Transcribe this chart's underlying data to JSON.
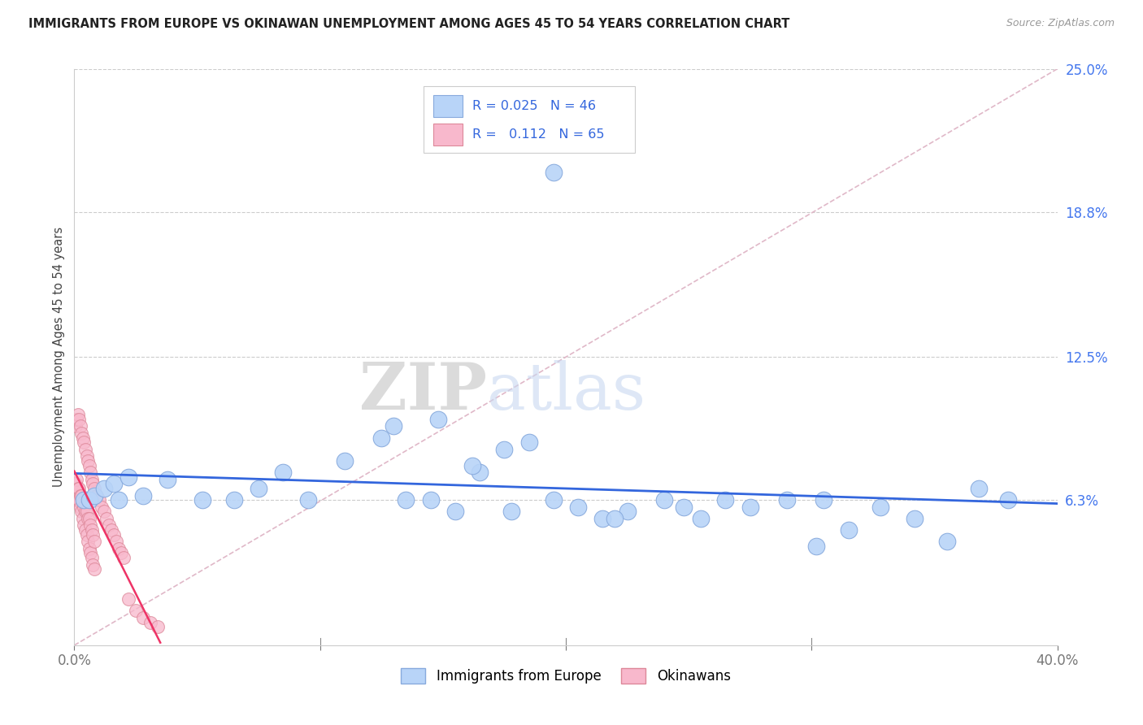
{
  "title": "IMMIGRANTS FROM EUROPE VS OKINAWAN UNEMPLOYMENT AMONG AGES 45 TO 54 YEARS CORRELATION CHART",
  "source": "Source: ZipAtlas.com",
  "ylabel": "Unemployment Among Ages 45 to 54 years",
  "xlim": [
    0.0,
    0.4
  ],
  "ylim": [
    0.0,
    0.25
  ],
  "xticks": [
    0.0,
    0.1,
    0.2,
    0.3,
    0.4
  ],
  "xticklabels": [
    "0.0%",
    "",
    "",
    "",
    "40.0%"
  ],
  "ytick_labels_right": [
    "25.0%",
    "18.8%",
    "12.5%",
    "6.3%"
  ],
  "ytick_vals_right": [
    0.25,
    0.188,
    0.125,
    0.063
  ],
  "blue_R": 0.025,
  "blue_N": 46,
  "pink_R": 0.112,
  "pink_N": 65,
  "watermark_zip": "ZIP",
  "watermark_atlas": "atlas",
  "legend_labels": [
    "Immigrants from Europe",
    "Okinawans"
  ],
  "blue_x": [
    0.004,
    0.006,
    0.008,
    0.012,
    0.016,
    0.018,
    0.022,
    0.028,
    0.038,
    0.052,
    0.065,
    0.075,
    0.085,
    0.095,
    0.11,
    0.125,
    0.135,
    0.145,
    0.155,
    0.165,
    0.175,
    0.185,
    0.195,
    0.205,
    0.215,
    0.225,
    0.24,
    0.255,
    0.265,
    0.275,
    0.29,
    0.305,
    0.315,
    0.328,
    0.342,
    0.355,
    0.368,
    0.38,
    0.13,
    0.148,
    0.162,
    0.178,
    0.22,
    0.248,
    0.302,
    0.195
  ],
  "blue_y": [
    0.063,
    0.063,
    0.065,
    0.068,
    0.07,
    0.063,
    0.073,
    0.065,
    0.072,
    0.063,
    0.063,
    0.068,
    0.075,
    0.063,
    0.08,
    0.09,
    0.063,
    0.063,
    0.058,
    0.075,
    0.085,
    0.088,
    0.063,
    0.06,
    0.055,
    0.058,
    0.063,
    0.055,
    0.063,
    0.06,
    0.063,
    0.063,
    0.05,
    0.06,
    0.055,
    0.045,
    0.068,
    0.063,
    0.095,
    0.098,
    0.078,
    0.058,
    0.055,
    0.06,
    0.043,
    0.205
  ],
  "pink_x": [
    0.0005,
    0.001,
    0.0015,
    0.002,
    0.0025,
    0.003,
    0.0035,
    0.004,
    0.0045,
    0.005,
    0.0055,
    0.006,
    0.0065,
    0.007,
    0.0075,
    0.008,
    0.0005,
    0.001,
    0.0015,
    0.002,
    0.0025,
    0.003,
    0.0035,
    0.004,
    0.0045,
    0.005,
    0.0055,
    0.006,
    0.0065,
    0.007,
    0.0075,
    0.008,
    0.0005,
    0.001,
    0.0015,
    0.002,
    0.0025,
    0.003,
    0.0035,
    0.004,
    0.0045,
    0.005,
    0.0055,
    0.006,
    0.0065,
    0.007,
    0.0075,
    0.008,
    0.009,
    0.01,
    0.011,
    0.012,
    0.013,
    0.014,
    0.015,
    0.016,
    0.017,
    0.018,
    0.019,
    0.02,
    0.022,
    0.025,
    0.028,
    0.031,
    0.034
  ],
  "pink_y": [
    0.063,
    0.065,
    0.063,
    0.063,
    0.06,
    0.058,
    0.055,
    0.052,
    0.05,
    0.048,
    0.045,
    0.042,
    0.04,
    0.038,
    0.035,
    0.033,
    0.07,
    0.072,
    0.068,
    0.068,
    0.065,
    0.065,
    0.062,
    0.06,
    0.058,
    0.058,
    0.055,
    0.055,
    0.052,
    0.05,
    0.048,
    0.045,
    0.095,
    0.098,
    0.1,
    0.098,
    0.095,
    0.092,
    0.09,
    0.088,
    0.085,
    0.082,
    0.08,
    0.078,
    0.075,
    0.072,
    0.07,
    0.068,
    0.065,
    0.063,
    0.06,
    0.058,
    0.055,
    0.052,
    0.05,
    0.048,
    0.045,
    0.042,
    0.04,
    0.038,
    0.02,
    0.015,
    0.012,
    0.01,
    0.008
  ]
}
